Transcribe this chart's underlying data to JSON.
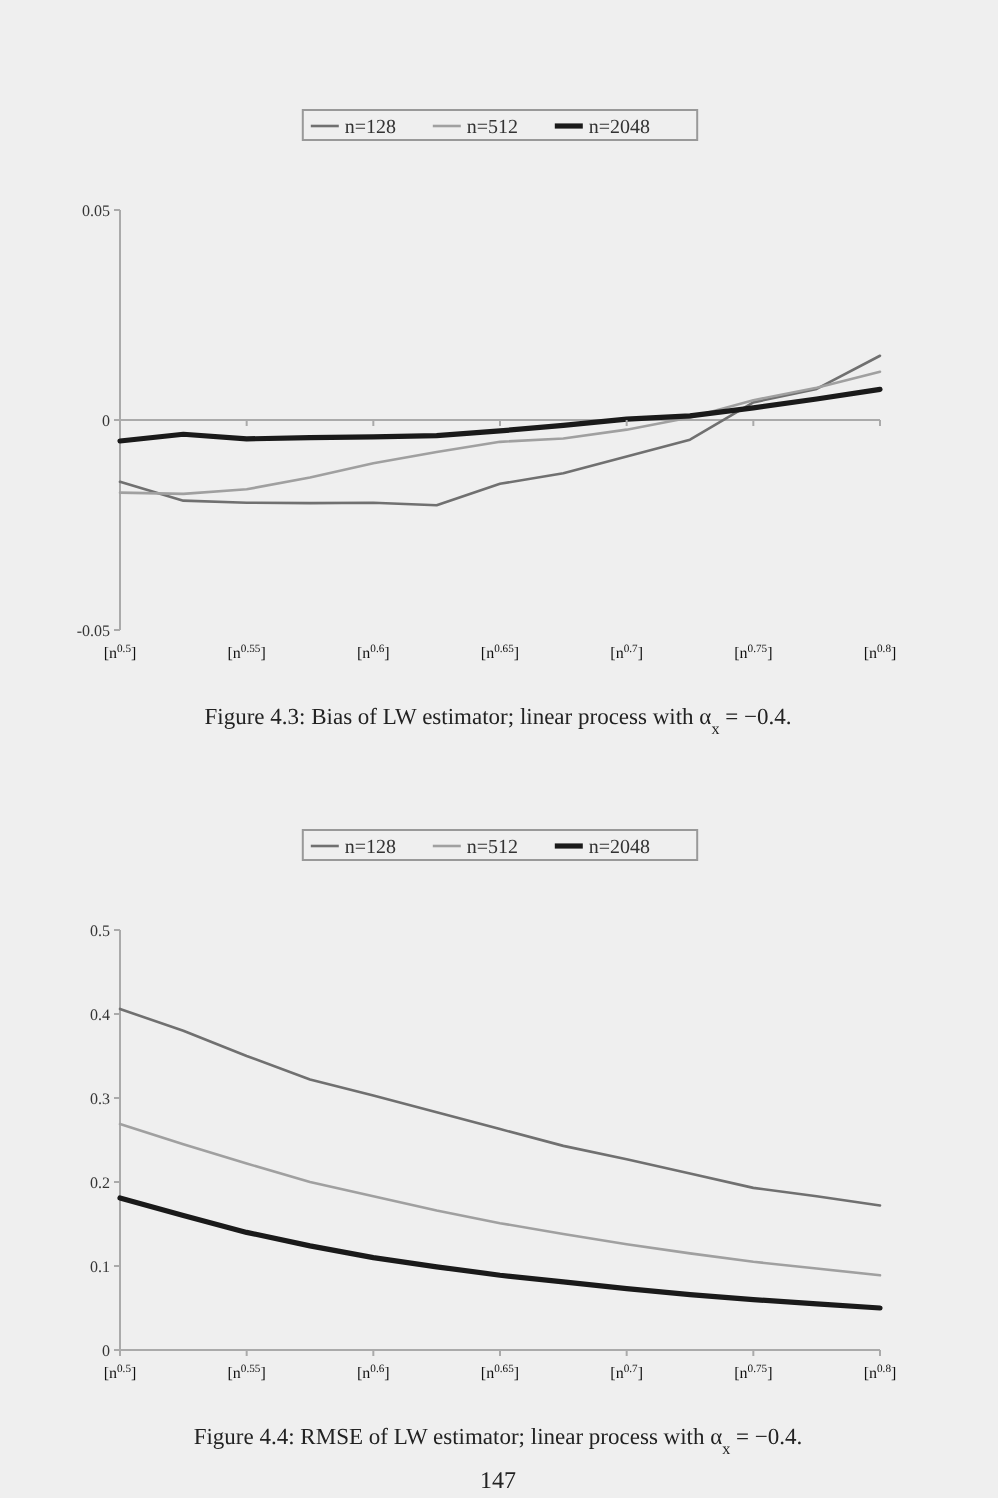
{
  "chart_data": [
    {
      "type": "line",
      "x": [
        0.5,
        0.525,
        0.55,
        0.575,
        0.6,
        0.625,
        0.65,
        0.675,
        0.7,
        0.725,
        0.75,
        0.775,
        0.8
      ],
      "series": [
        {
          "name": "n=128",
          "color": "#707070",
          "values": [
            -0.0147,
            -0.0192,
            -0.0197,
            -0.0198,
            -0.0197,
            -0.0203,
            -0.0152,
            -0.0127,
            -0.0087,
            -0.0047,
            0.0042,
            0.0074,
            0.0153
          ]
        },
        {
          "name": "n=512",
          "color": "#a0a0a0",
          "values": [
            -0.0173,
            -0.0176,
            -0.0165,
            -0.0137,
            -0.0103,
            -0.0076,
            -0.0052,
            -0.0044,
            -0.0023,
            0.0006,
            0.0047,
            0.0077,
            0.0115
          ]
        },
        {
          "name": "n=2048",
          "color": "#1a1a1a",
          "values": [
            -0.005,
            -0.0034,
            -0.0045,
            -0.0042,
            -0.004,
            -0.0037,
            -0.0026,
            -0.0013,
            0.0002,
            0.001,
            0.0029,
            0.005,
            0.0073
          ]
        }
      ],
      "xlim": [
        0.5,
        0.8
      ],
      "xticks": [
        {
          "value": 0.5,
          "label": "[n$^{0.5}$]"
        },
        {
          "value": 0.55,
          "label": "[n$^{0.55}$]"
        },
        {
          "value": 0.6,
          "label": "[n$^{0.6}$]"
        },
        {
          "value": 0.65,
          "label": "[n$^{0.65}$]"
        },
        {
          "value": 0.7,
          "label": "[n$^{0.7}$]"
        },
        {
          "value": 0.75,
          "label": "[n$^{0.75}$]"
        },
        {
          "value": 0.8,
          "label": "[n$^{0.8}$]"
        }
      ],
      "ylim": [
        -0.05,
        0.05
      ],
      "yticks": [
        -0.05,
        0,
        0.05
      ],
      "ref_lines": [
        {
          "axis": "y",
          "value": 0,
          "color": "#aaaaaa"
        }
      ],
      "grid": false,
      "legend": "top",
      "marker": "none",
      "line_style": "solid",
      "annotations": [
        "Figure 4.3: Bias of LW estimator; linear process with α$_{x}$ = −0.4."
      ]
    },
    {
      "type": "line",
      "x": [
        0.5,
        0.525,
        0.55,
        0.575,
        0.6,
        0.625,
        0.65,
        0.675,
        0.7,
        0.725,
        0.75,
        0.775,
        0.8
      ],
      "series": [
        {
          "name": "n=128",
          "color": "#707070",
          "values": [
            0.406,
            0.38,
            0.35,
            0.322,
            0.303,
            0.283,
            0.263,
            0.243,
            0.227,
            0.21,
            0.193,
            0.183,
            0.172
          ]
        },
        {
          "name": "n=512",
          "color": "#a0a0a0",
          "values": [
            0.269,
            0.245,
            0.222,
            0.2,
            0.183,
            0.166,
            0.151,
            0.138,
            0.126,
            0.115,
            0.105,
            0.097,
            0.089
          ]
        },
        {
          "name": "n=2048",
          "color": "#1a1a1a",
          "values": [
            0.181,
            0.16,
            0.14,
            0.124,
            0.11,
            0.099,
            0.089,
            0.081,
            0.073,
            0.066,
            0.06,
            0.055,
            0.05
          ]
        }
      ],
      "xlim": [
        0.5,
        0.8
      ],
      "xticks": [
        {
          "value": 0.5,
          "label": "[n$^{0.5}$]"
        },
        {
          "value": 0.55,
          "label": "[n$^{0.55}$]"
        },
        {
          "value": 0.6,
          "label": "[n$^{0.6}$]"
        },
        {
          "value": 0.65,
          "label": "[n$^{0.65}$]"
        },
        {
          "value": 0.7,
          "label": "[n$^{0.7}$]"
        },
        {
          "value": 0.75,
          "label": "[n$^{0.75}$]"
        },
        {
          "value": 0.8,
          "label": "[n$^{0.8}$]"
        }
      ],
      "ylim": [
        0,
        0.5
      ],
      "yticks": [
        0,
        0.1,
        0.2,
        0.3,
        0.4,
        0.5
      ],
      "grid": false,
      "legend": "top",
      "marker": "none",
      "line_style": "solid",
      "annotations": [
        "Figure 4.4: RMSE of LW estimator; linear process with α$_{x}$ = −0.4.",
        "147"
      ]
    }
  ]
}
